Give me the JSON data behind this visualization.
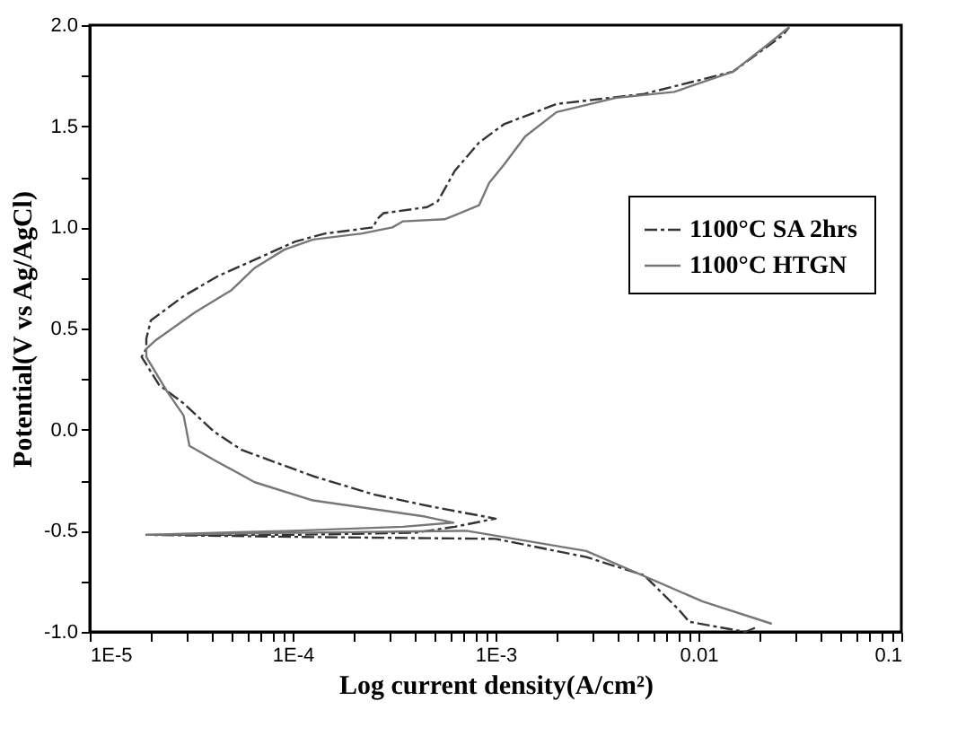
{
  "chart_data": {
    "type": "line",
    "xlabel": "Log current density(A/cm²)",
    "ylabel": "Potential(V vs Ag/AgCl)",
    "log": "x",
    "xlim": [
      1e-05,
      0.1
    ],
    "ylim": [
      -1.0,
      2.0
    ],
    "xticks": [
      {
        "value": 1e-05,
        "label": "1E-5"
      },
      {
        "value": 2e-05,
        "label": null
      },
      {
        "value": 3e-05,
        "label": null
      },
      {
        "value": 4e-05,
        "label": null
      },
      {
        "value": 5e-05,
        "label": null
      },
      {
        "value": 6e-05,
        "label": null
      },
      {
        "value": 7e-05,
        "label": null
      },
      {
        "value": 8e-05,
        "label": null
      },
      {
        "value": 9e-05,
        "label": null
      },
      {
        "value": 0.0001,
        "label": "1E-4"
      },
      {
        "value": 0.0002,
        "label": null
      },
      {
        "value": 0.0003,
        "label": null
      },
      {
        "value": 0.0004,
        "label": null
      },
      {
        "value": 0.0005,
        "label": null
      },
      {
        "value": 0.0006,
        "label": null
      },
      {
        "value": 0.0007,
        "label": null
      },
      {
        "value": 0.0008,
        "label": null
      },
      {
        "value": 0.0009,
        "label": null
      },
      {
        "value": 0.001,
        "label": "1E-3"
      },
      {
        "value": 0.002,
        "label": null
      },
      {
        "value": 0.003,
        "label": null
      },
      {
        "value": 0.004,
        "label": null
      },
      {
        "value": 0.005,
        "label": null
      },
      {
        "value": 0.006,
        "label": null
      },
      {
        "value": 0.007,
        "label": null
      },
      {
        "value": 0.008,
        "label": null
      },
      {
        "value": 0.009,
        "label": null
      },
      {
        "value": 0.01,
        "label": "0.01"
      },
      {
        "value": 0.02,
        "label": null
      },
      {
        "value": 0.03,
        "label": null
      },
      {
        "value": 0.04,
        "label": null
      },
      {
        "value": 0.05,
        "label": null
      },
      {
        "value": 0.06,
        "label": null
      },
      {
        "value": 0.07,
        "label": null
      },
      {
        "value": 0.08,
        "label": null
      },
      {
        "value": 0.09,
        "label": null
      },
      {
        "value": 0.1,
        "label": "0.1"
      }
    ],
    "yticks": [
      {
        "value": -1.0,
        "label": "-1.0"
      },
      {
        "value": -0.75,
        "label": null
      },
      {
        "value": -0.5,
        "label": "-0.5"
      },
      {
        "value": -0.25,
        "label": null
      },
      {
        "value": 0.0,
        "label": "0.0"
      },
      {
        "value": 0.25,
        "label": null
      },
      {
        "value": 0.5,
        "label": "0.5"
      },
      {
        "value": 0.75,
        "label": null
      },
      {
        "value": 1.0,
        "label": "1.0"
      },
      {
        "value": 1.25,
        "label": null
      },
      {
        "value": 1.5,
        "label": "1.5"
      },
      {
        "value": 1.75,
        "label": null
      },
      {
        "value": 2.0,
        "label": "2.0"
      }
    ],
    "grid": false,
    "legend": "right",
    "marker": "none",
    "series": [
      {
        "name": "1100°C SA 2hrs",
        "color": "#333333",
        "line_style": "dashed",
        "x": [
          0.019,
          0.017,
          0.009,
          0.008,
          0.0054,
          0.0028,
          0.001,
          0.0001,
          1.9e-05,
          0.0001,
          0.0004,
          0.00063,
          0.001,
          0.00048,
          0.00025,
          0.000126,
          5.6e-05,
          4.1e-05,
          2.9e-05,
          2.2e-05,
          1.8e-05,
          1.9e-05,
          1.9e-05,
          2e-05,
          2.9e-05,
          4.3e-05,
          6.5e-05,
          0.000103,
          0.000145,
          0.00025,
          0.00026,
          0.00028,
          0.00046,
          0.00052,
          0.00063,
          0.00083,
          0.0011,
          0.002,
          0.0054,
          0.0148,
          0.026,
          0.028
        ],
        "values": [
          -0.98,
          -1.0,
          -0.95,
          -0.89,
          -0.72,
          -0.63,
          -0.54,
          -0.53,
          -0.52,
          -0.52,
          -0.51,
          -0.48,
          -0.44,
          -0.38,
          -0.32,
          -0.23,
          -0.1,
          -0.01,
          0.13,
          0.22,
          0.36,
          0.4,
          0.45,
          0.54,
          0.66,
          0.76,
          0.84,
          0.93,
          0.97,
          1.0,
          1.04,
          1.07,
          1.1,
          1.13,
          1.28,
          1.42,
          1.51,
          1.61,
          1.66,
          1.77,
          1.95,
          1.99
        ]
      },
      {
        "name": "1100°C HTGN",
        "color": "#777777",
        "line_style": "solid",
        "x": [
          0.023,
          0.0105,
          0.0028,
          0.00072,
          0.0001,
          1.9e-05,
          0.0001,
          0.00035,
          0.00062,
          0.00045,
          0.000126,
          6.5e-05,
          4.1e-05,
          3.1e-05,
          2.9e-05,
          2.4e-05,
          1.9e-05,
          1.9e-05,
          2.1e-05,
          3.3e-05,
          5e-05,
          6.5e-05,
          9.1e-05,
          0.000126,
          0.00022,
          0.00031,
          0.00035,
          0.00056,
          0.00063,
          0.00083,
          0.00093,
          0.0011,
          0.0014,
          0.002,
          0.0039,
          0.0076,
          0.0148,
          0.023,
          0.028
        ],
        "values": [
          -0.96,
          -0.85,
          -0.6,
          -0.5,
          -0.51,
          -0.52,
          -0.5,
          -0.48,
          -0.46,
          -0.43,
          -0.35,
          -0.26,
          -0.15,
          -0.08,
          0.07,
          0.19,
          0.36,
          0.4,
          0.44,
          0.58,
          0.69,
          0.8,
          0.89,
          0.94,
          0.97,
          1.0,
          1.03,
          1.04,
          1.06,
          1.11,
          1.22,
          1.31,
          1.45,
          1.57,
          1.64,
          1.67,
          1.77,
          1.92,
          1.99
        ]
      }
    ]
  }
}
